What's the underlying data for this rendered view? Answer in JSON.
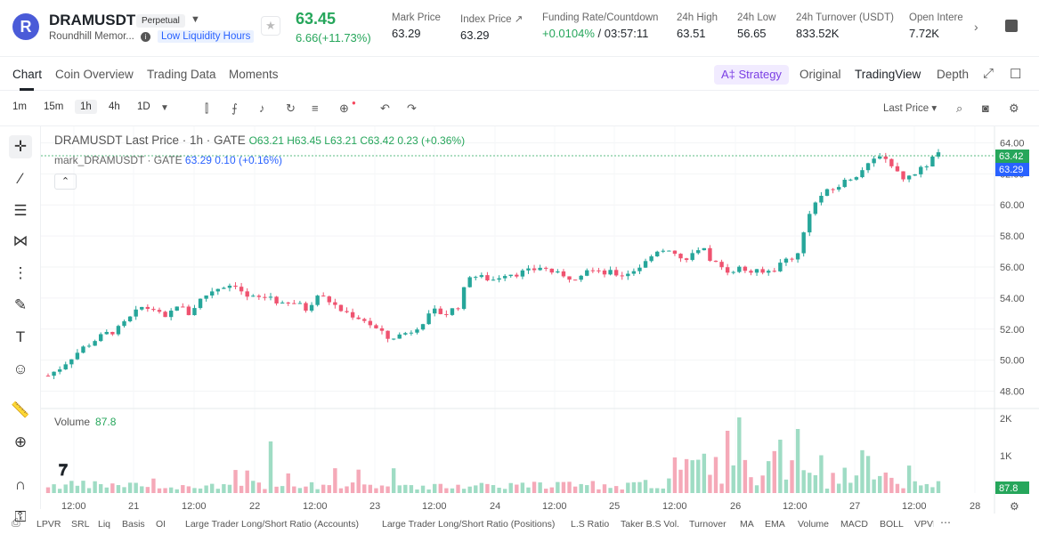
{
  "header": {
    "logo_letter": "R",
    "symbol": "DRAMUSDT",
    "contract_type": "Perpetual",
    "name": "Roundhill Memor...",
    "liquidity_badge": "Low Liquidity Hours",
    "last_price": "63.45",
    "change": "6.66(+11.73%)",
    "stats": [
      {
        "label": "Mark Price",
        "value": "63.29"
      },
      {
        "label": "Index Price ↗",
        "value": "63.29"
      },
      {
        "label": "Funding Rate/Countdown",
        "value_green": "+0.0104%",
        "value_rest": " / 03:57:11"
      },
      {
        "label": "24h High",
        "value": "63.51"
      },
      {
        "label": "24h Low",
        "value": "56.65"
      },
      {
        "label": "24h Turnover (USDT)",
        "value": "833.52K"
      },
      {
        "label": "Open Intere",
        "value": "7.72K"
      }
    ]
  },
  "tabs": [
    "Chart",
    "Coin Overview",
    "Trading Data",
    "Moments"
  ],
  "right_tabs": {
    "strategy": "A‡ Strategy",
    "original": "Original",
    "tradingview": "TradingView",
    "depth": "Depth"
  },
  "toolbar": {
    "timeframes": [
      "1m",
      "15m",
      "1h",
      "4h",
      "1D"
    ],
    "active_timeframe": "1h",
    "price_type": "Last Price"
  },
  "legend": {
    "title": "DRAMUSDT Last Price · 1h · GATE",
    "ohlc": "O63.21 H63.45 L63.21 C63.42 0.23 (+0.36%)",
    "mark_name": "mark_DRAMUSDT · GATE",
    "mark_values": "63.29 0.10 (+0.16%)",
    "volume_label": "Volume",
    "volume_value": "87.8"
  },
  "chart_data": {
    "type": "candlestick",
    "y_ticks": [
      "64.00",
      "62.00",
      "60.00",
      "58.00",
      "56.00",
      "54.00",
      "52.00",
      "50.00",
      "48.00"
    ],
    "ylim": [
      47.4,
      64.6
    ],
    "volume_ticks": [
      "2K",
      "1K"
    ],
    "x_ticks": [
      "12:00",
      "21",
      "12:00",
      "22",
      "12:00",
      "23",
      "12:00",
      "24",
      "12:00",
      "25",
      "12:00",
      "26",
      "12:00",
      "27",
      "12:00",
      "28"
    ],
    "last_price_label": "63.42",
    "mark_price_label": "63.29",
    "last_volume_label": "87.8",
    "close_path": [
      [
        0,
        49.0
      ],
      [
        2,
        49.5
      ],
      [
        4,
        50.2
      ],
      [
        6,
        50.8
      ],
      [
        8,
        51.3
      ],
      [
        10,
        51.7
      ],
      [
        12,
        52.0
      ],
      [
        14,
        52.7
      ],
      [
        16,
        53.4
      ],
      [
        18,
        53.3
      ],
      [
        20,
        52.6
      ],
      [
        22,
        53.6
      ],
      [
        24,
        53.0
      ],
      [
        26,
        53.9
      ],
      [
        28,
        54.5
      ],
      [
        30,
        54.8
      ],
      [
        32,
        54.9
      ],
      [
        34,
        54.0
      ],
      [
        36,
        54.0
      ],
      [
        38,
        54.1
      ],
      [
        40,
        53.5
      ],
      [
        42,
        53.7
      ],
      [
        44,
        53.3
      ],
      [
        46,
        54.2
      ],
      [
        48,
        53.8
      ],
      [
        50,
        53.2
      ],
      [
        52,
        52.9
      ],
      [
        54,
        52.6
      ],
      [
        56,
        52.0
      ],
      [
        58,
        51.4
      ],
      [
        60,
        51.6
      ],
      [
        62,
        51.9
      ],
      [
        64,
        52.5
      ],
      [
        66,
        53.1
      ],
      [
        68,
        53.0
      ],
      [
        70,
        53.5
      ],
      [
        72,
        55.5
      ],
      [
        74,
        55.3
      ],
      [
        76,
        55.2
      ],
      [
        78,
        55.6
      ],
      [
        80,
        55.6
      ],
      [
        82,
        55.7
      ],
      [
        84,
        56.0
      ],
      [
        86,
        55.7
      ],
      [
        88,
        55.3
      ],
      [
        90,
        55.4
      ],
      [
        92,
        55.9
      ],
      [
        94,
        55.6
      ],
      [
        96,
        55.6
      ],
      [
        98,
        55.5
      ],
      [
        100,
        55.8
      ],
      [
        102,
        56.3
      ],
      [
        104,
        57.1
      ],
      [
        106,
        57.2
      ],
      [
        108,
        56.5
      ],
      [
        110,
        56.8
      ],
      [
        112,
        57.0
      ],
      [
        114,
        56.2
      ],
      [
        116,
        55.8
      ],
      [
        118,
        55.9
      ],
      [
        120,
        55.7
      ],
      [
        122,
        55.6
      ],
      [
        124,
        55.9
      ],
      [
        126,
        56.5
      ],
      [
        128,
        56.8
      ],
      [
        130,
        59.6
      ],
      [
        132,
        60.6
      ],
      [
        134,
        61.0
      ],
      [
        136,
        61.5
      ],
      [
        138,
        62.0
      ],
      [
        140,
        62.5
      ],
      [
        142,
        63.3
      ],
      [
        144,
        62.6
      ],
      [
        146,
        61.6
      ],
      [
        148,
        62.0
      ],
      [
        150,
        62.6
      ],
      [
        152,
        63.4
      ]
    ]
  }
}
